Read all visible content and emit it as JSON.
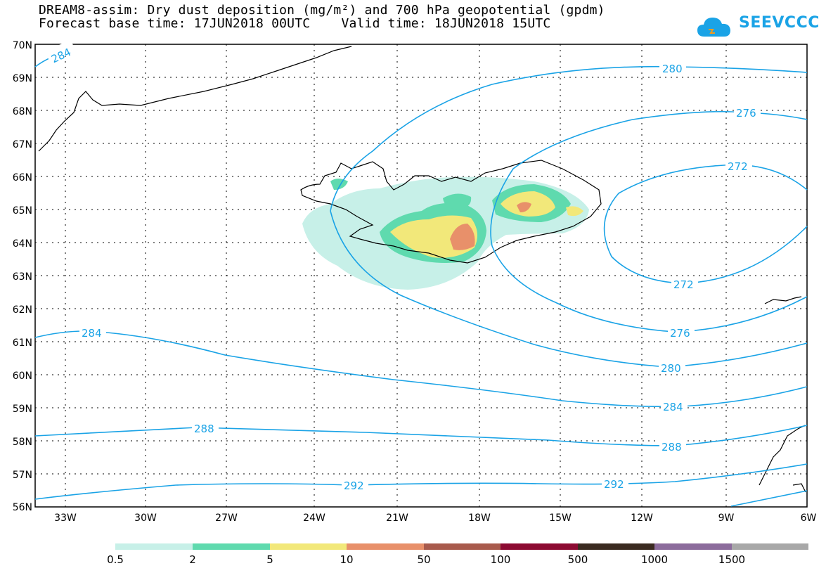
{
  "header": {
    "title_line1": "DREAM8-assim: Dry dust deposition (mg/m²) and 700 hPa geopotential (gpdm)",
    "title_line2": "Forecast base time: 17JUN2018 00UTC    Valid time: 18JUN2018 15UTC",
    "logo_text": "SEEVCCC"
  },
  "axes": {
    "lat_labels": [
      "70N",
      "69N",
      "68N",
      "67N",
      "66N",
      "65N",
      "64N",
      "63N",
      "62N",
      "61N",
      "60N",
      "59N",
      "58N",
      "57N",
      "56N"
    ],
    "lon_labels": [
      "33W",
      "30W",
      "27W",
      "24W",
      "21W",
      "18W",
      "15W",
      "12W",
      "9W",
      "6W"
    ]
  },
  "contours": {
    "color": "#1aa3e6",
    "labels": [
      "284",
      "280",
      "276",
      "272",
      "272",
      "276",
      "280",
      "284",
      "284",
      "288",
      "288",
      "292",
      "292"
    ]
  },
  "legend": {
    "bins": [
      {
        "color": "#c7f0e8",
        "label": "0.5"
      },
      {
        "color": "#5fdaae",
        "label": "2"
      },
      {
        "color": "#f2e87a",
        "label": "5"
      },
      {
        "color": "#e8906a",
        "label": "10"
      },
      {
        "color": "#a85a4c",
        "label": "50"
      },
      {
        "color": "#8c0a32",
        "label": "100"
      },
      {
        "color": "#3a2a20",
        "label": "500"
      },
      {
        "color": "#8c6c9c",
        "label": "1000"
      },
      {
        "color": "#a8a8a8",
        "label": "1500"
      }
    ]
  },
  "colors": {
    "dust_light": "#c7f0e8",
    "dust_mid": "#5fdaae",
    "dust_yellow": "#f2e87a",
    "dust_orange": "#e8906a",
    "coast": "#000000"
  }
}
